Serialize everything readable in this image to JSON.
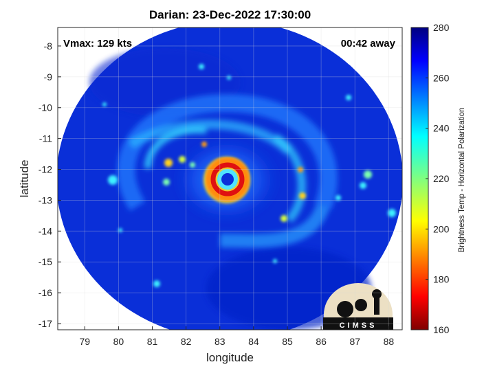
{
  "figure": {
    "title": "Darian: 23-Dec-2022 17:30:00",
    "xlabel": "longitude",
    "ylabel": "latitude",
    "vmax_text": "Vmax: 129 kts",
    "time_text": "00:42 away",
    "logo_text": "CIMSS"
  },
  "axes": {
    "x_ticks": [
      "79",
      "80",
      "81",
      "82",
      "83",
      "84",
      "85",
      "86",
      "87",
      "88"
    ],
    "y_ticks": [
      "-8",
      "-9",
      "-10",
      "-11",
      "-12",
      "-13",
      "-14",
      "-15",
      "-16",
      "-17"
    ],
    "xlim": [
      78.2,
      88.4
    ],
    "ylim": [
      -17.2,
      -7.4
    ],
    "grid": true
  },
  "colorbar": {
    "label": "Brightness Temp - Horizontal Polarization",
    "ticks": [
      "280",
      "260",
      "240",
      "220",
      "200",
      "180",
      "160"
    ],
    "range": [
      160,
      280
    ],
    "colormap": "jet"
  },
  "storm": {
    "name": "Darian",
    "eye_center_lon": 83.2,
    "eye_center_lat": -12.15
  },
  "colors": {
    "background_cold": "#0a2fd8",
    "eyewall_hot": "#e01010",
    "outer_boundary": "#ffffff"
  }
}
